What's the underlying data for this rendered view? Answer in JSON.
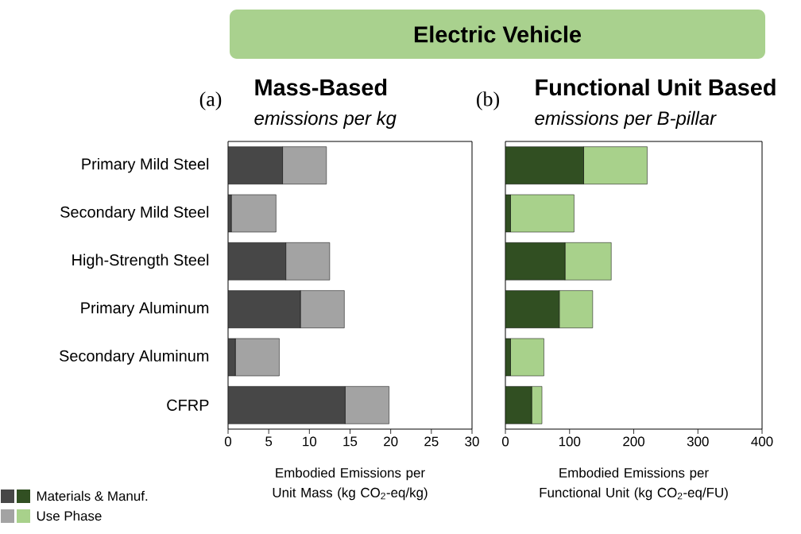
{
  "chart_data": [
    {
      "type": "bar",
      "orientation": "horizontal",
      "stacked": true,
      "title": "Mass-Based",
      "subtitle": "emissions per kg",
      "xlabel": "Embodied Emissions per Unit Mass (kg CO$_{2}$-eq/kg)",
      "annotations": [
        "Electric Vehicle",
        "(a)"
      ],
      "categories": [
        "Primary Mild Steel",
        "Secondary Mild Steel",
        "High-Strength Steel",
        "Primary Aluminum",
        "Secondary Aluminum",
        "CFRP"
      ],
      "xlim": [
        0,
        30
      ],
      "xticks": [
        0,
        5,
        10,
        15,
        20,
        25,
        30
      ],
      "series": [
        {
          "color": "#474747",
          "values": [
            6.7,
            0.4,
            7.1,
            8.9,
            0.9,
            14.4
          ]
        },
        {
          "color": "#a3a3a3",
          "values": [
            5.4,
            5.5,
            5.4,
            5.4,
            5.4,
            5.4
          ]
        }
      ]
    },
    {
      "type": "bar",
      "orientation": "horizontal",
      "stacked": true,
      "title": "Functional Unit Based",
      "subtitle": "emissions per B-pillar",
      "xlabel": "Embodied Emissions per Functional Unit (kg CO$_{2}$-eq/FU)",
      "annotations": [
        "(b)"
      ],
      "categories": [
        null,
        null,
        null,
        null,
        null,
        null
      ],
      "xlim": [
        0,
        400
      ],
      "xticks": [
        0,
        100,
        200,
        300,
        400
      ],
      "legend": "bottom left",
      "series": [
        {
          "name": "Materials & Manuf.",
          "color": "#314f22",
          "values": [
            122,
            8,
            93,
            84,
            8,
            41
          ]
        },
        {
          "name": "Use Phase",
          "color": "#a8d18b",
          "values": [
            99,
            99,
            72,
            52,
            52,
            16
          ]
        }
      ]
    }
  ]
}
